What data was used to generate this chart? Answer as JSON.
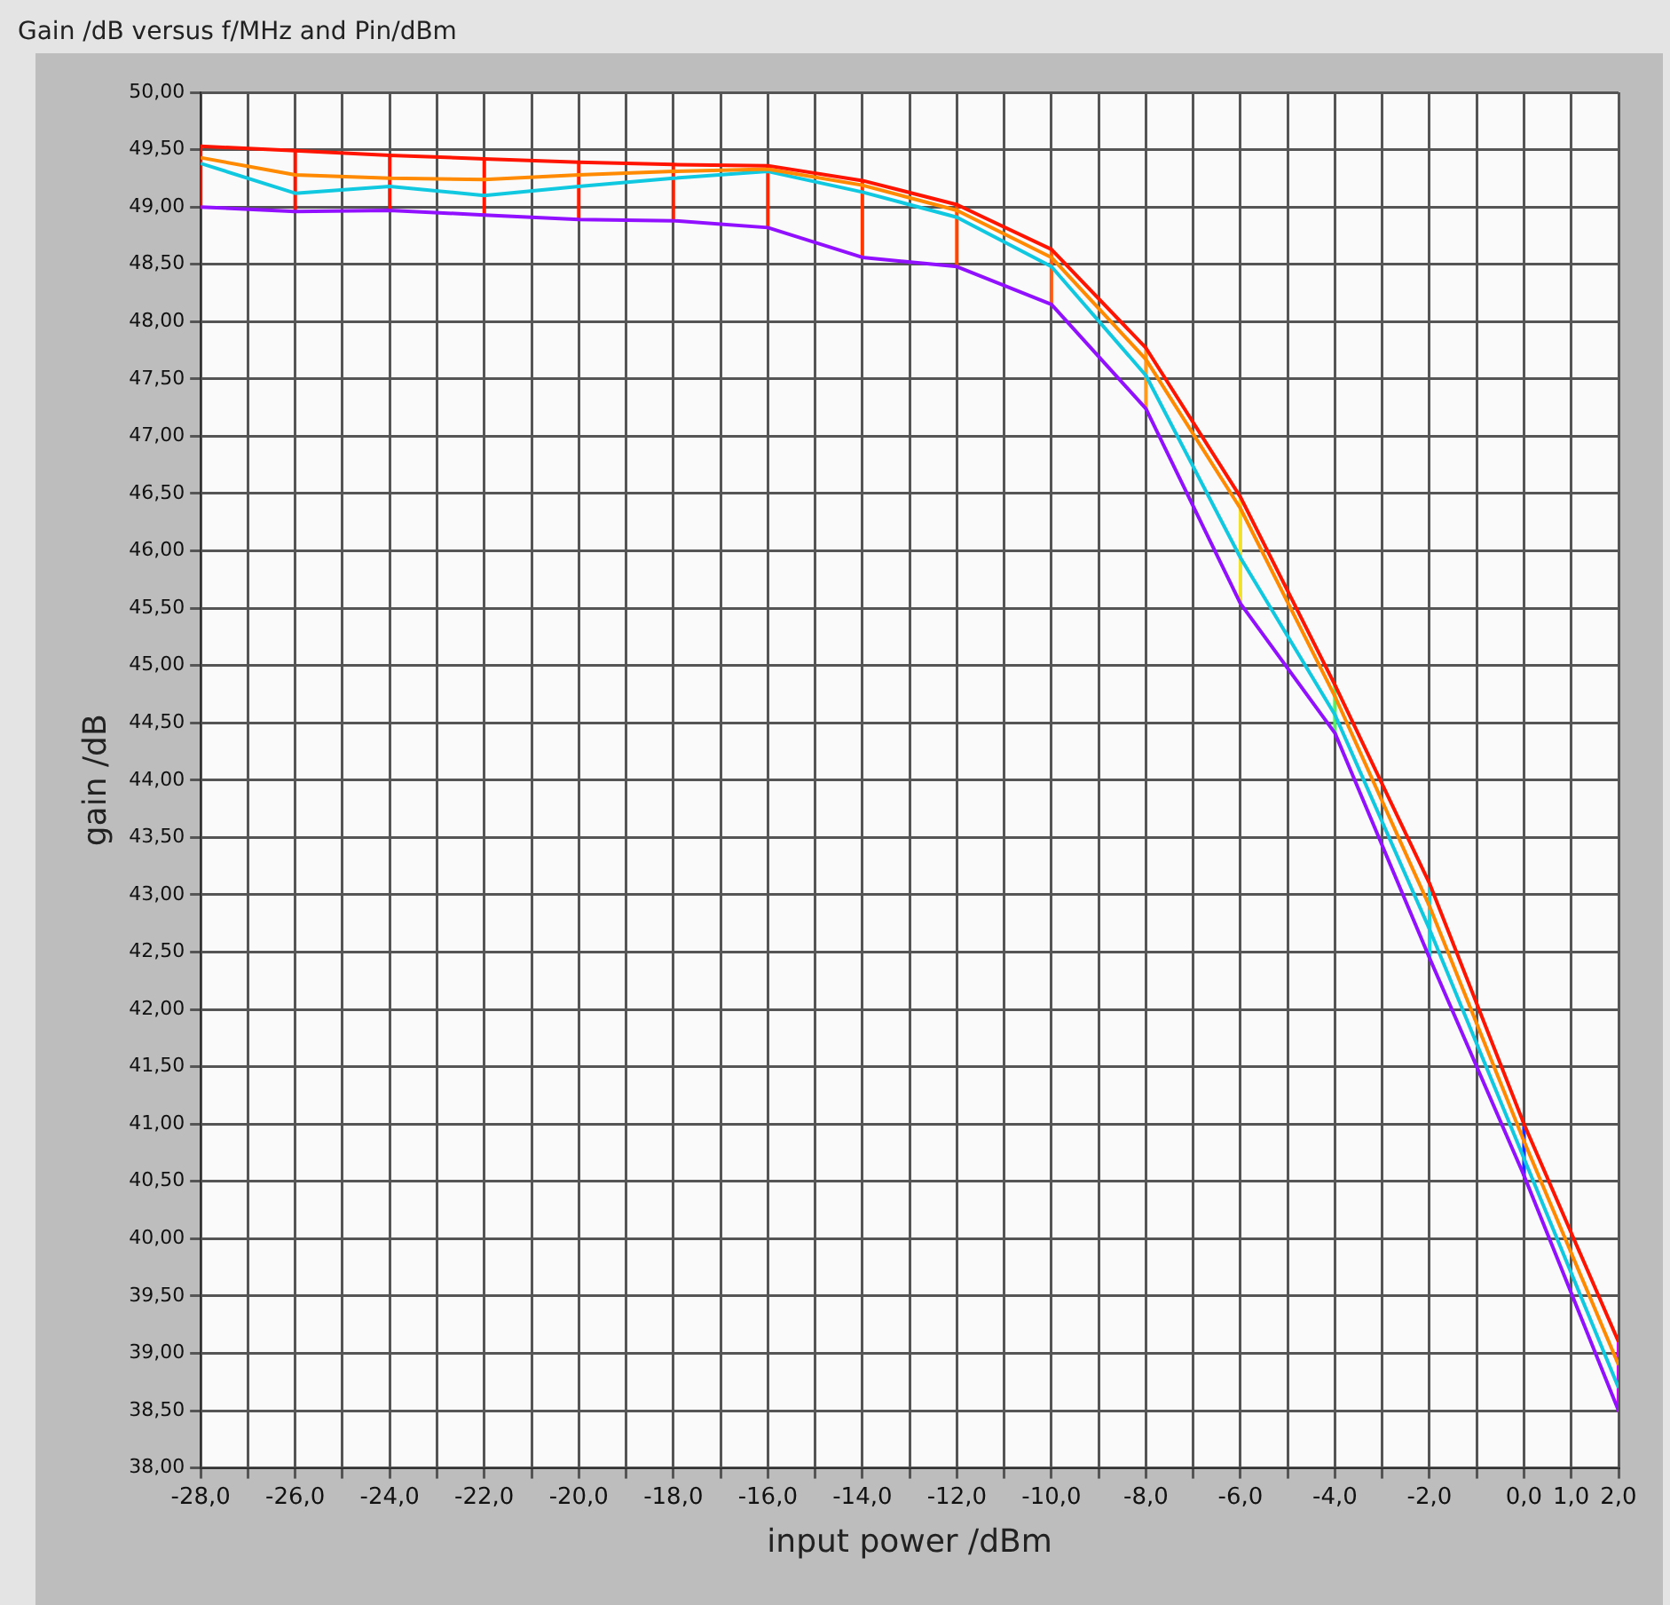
{
  "chart_data": {
    "type": "line",
    "title": "Gain /dB versus f/MHz and Pin/dBm",
    "xlabel": "input power /dBm",
    "ylabel": "gain /dB",
    "x": [
      -28,
      -26,
      -24,
      -22,
      -20,
      -18,
      -16,
      -14,
      -12,
      -10,
      -8,
      -6,
      -4,
      -2,
      0,
      2
    ],
    "series": [
      {
        "color": "#ff1400",
        "values": [
          49.53,
          49.49,
          49.45,
          49.42,
          49.39,
          49.37,
          49.36,
          49.23,
          49.02,
          48.63,
          47.77,
          46.47,
          44.83,
          43.1,
          41.0,
          39.1
        ]
      },
      {
        "color": "#ff8a00",
        "values": [
          49.43,
          49.28,
          49.25,
          49.24,
          49.28,
          49.31,
          49.33,
          49.19,
          48.97,
          48.56,
          47.67,
          46.37,
          44.73,
          42.9,
          40.85,
          38.9
        ]
      },
      {
        "color": "#10c8e0",
        "values": [
          49.38,
          49.12,
          49.18,
          49.1,
          49.18,
          49.25,
          49.31,
          49.13,
          48.91,
          48.48,
          47.53,
          45.94,
          44.57,
          42.7,
          40.7,
          38.7
        ]
      },
      {
        "color": "#9010ff",
        "values": [
          49.0,
          48.96,
          48.97,
          48.93,
          48.89,
          48.88,
          48.82,
          48.56,
          48.48,
          48.15,
          47.24,
          45.54,
          44.41,
          42.45,
          40.55,
          38.5
        ]
      },
      {
        "color": "#ff1400",
        "x": [
          -28,
          -28,
          -28,
          -28
        ],
        "values": [
          49.53,
          49.43,
          49.38,
          49.0
        ]
      },
      {
        "color": "#ff1400",
        "x": [
          -26,
          -26,
          -26,
          -26
        ],
        "values": [
          49.49,
          49.28,
          49.12,
          48.96
        ]
      },
      {
        "color": "#ff1400",
        "x": [
          -24,
          -24,
          -24,
          -24
        ],
        "values": [
          49.45,
          49.25,
          49.18,
          48.97
        ]
      },
      {
        "color": "#ff1800",
        "x": [
          -22,
          -22,
          -22,
          -22
        ],
        "values": [
          49.42,
          49.24,
          49.1,
          48.93
        ]
      },
      {
        "color": "#ff1c00",
        "x": [
          -20,
          -20,
          -20,
          -20
        ],
        "values": [
          49.39,
          49.28,
          49.18,
          48.89
        ]
      },
      {
        "color": "#ff2000",
        "x": [
          -18,
          -18,
          -18,
          -18
        ],
        "values": [
          49.37,
          49.31,
          49.25,
          48.88
        ]
      },
      {
        "color": "#ff2800",
        "x": [
          -16,
          -16,
          -16,
          -16
        ],
        "values": [
          49.36,
          49.33,
          49.31,
          48.82
        ]
      },
      {
        "color": "#ff3800",
        "x": [
          -14,
          -14,
          -14,
          -14
        ],
        "values": [
          49.23,
          49.19,
          49.13,
          48.56
        ]
      },
      {
        "color": "#ff4400",
        "x": [
          -12,
          -12,
          -12,
          -12
        ],
        "values": [
          49.02,
          48.97,
          48.91,
          48.48
        ]
      },
      {
        "color": "#ff5a10",
        "x": [
          -10,
          -10,
          -10,
          -10
        ],
        "values": [
          48.63,
          48.56,
          48.48,
          48.15
        ]
      },
      {
        "color": "#ff9a20",
        "x": [
          -8,
          -8,
          -8,
          -8
        ],
        "values": [
          47.77,
          47.67,
          47.53,
          47.24
        ]
      },
      {
        "color": "#f0e030",
        "x": [
          -6,
          -6,
          -6,
          -6
        ],
        "values": [
          46.47,
          46.37,
          45.94,
          45.54
        ]
      },
      {
        "color": "#50f060",
        "x": [
          -4,
          -4,
          -4,
          -4
        ],
        "values": [
          44.83,
          44.73,
          44.57,
          44.41
        ]
      },
      {
        "color": "#10d8e0",
        "x": [
          -2,
          -2,
          -2,
          -2
        ],
        "values": [
          43.1,
          42.9,
          42.7,
          42.45
        ]
      },
      {
        "color": "#1030ff",
        "x": [
          0,
          0,
          0,
          0
        ],
        "values": [
          41.0,
          40.85,
          40.7,
          40.55
        ]
      },
      {
        "color": "#d000ff",
        "x": [
          2,
          2,
          2,
          2
        ],
        "values": [
          39.1,
          38.9,
          38.7,
          38.5
        ]
      }
    ],
    "xlim": [
      -28,
      2
    ],
    "xticks": [
      {
        "value": -28,
        "label": "-28,0"
      },
      {
        "value": -27,
        "label": null
      },
      {
        "value": -26,
        "label": "-26,0"
      },
      {
        "value": -25,
        "label": null
      },
      {
        "value": -24,
        "label": "-24,0"
      },
      {
        "value": -23,
        "label": null
      },
      {
        "value": -22,
        "label": "-22,0"
      },
      {
        "value": -21,
        "label": null
      },
      {
        "value": -20,
        "label": "-20,0"
      },
      {
        "value": -19,
        "label": null
      },
      {
        "value": -18,
        "label": "-18,0"
      },
      {
        "value": -17,
        "label": null
      },
      {
        "value": -16,
        "label": "-16,0"
      },
      {
        "value": -15,
        "label": null
      },
      {
        "value": -14,
        "label": "-14,0"
      },
      {
        "value": -13,
        "label": null
      },
      {
        "value": -12,
        "label": "-12,0"
      },
      {
        "value": -11,
        "label": null
      },
      {
        "value": -10,
        "label": "-10,0"
      },
      {
        "value": -9,
        "label": null
      },
      {
        "value": -8,
        "label": "-8,0"
      },
      {
        "value": -7,
        "label": null
      },
      {
        "value": -6,
        "label": "-6,0"
      },
      {
        "value": -5,
        "label": null
      },
      {
        "value": -4,
        "label": "-4,0"
      },
      {
        "value": -3,
        "label": null
      },
      {
        "value": -2,
        "label": "-2,0"
      },
      {
        "value": -1,
        "label": null
      },
      {
        "value": 0,
        "label": "0,0"
      },
      {
        "value": 1,
        "label": "1,0"
      },
      {
        "value": 2,
        "label": "2,0"
      }
    ],
    "ylim": [
      38,
      50
    ],
    "yticks": [
      {
        "value": 38,
        "label": "38,00"
      },
      {
        "value": 38.5,
        "label": "38,50"
      },
      {
        "value": 39,
        "label": "39,00"
      },
      {
        "value": 39.5,
        "label": "39,50"
      },
      {
        "value": 40,
        "label": "40,00"
      },
      {
        "value": 40.5,
        "label": "40,50"
      },
      {
        "value": 41,
        "label": "41,00"
      },
      {
        "value": 41.5,
        "label": "41,50"
      },
      {
        "value": 42,
        "label": "42,00"
      },
      {
        "value": 42.5,
        "label": "42,50"
      },
      {
        "value": 43,
        "label": "43,00"
      },
      {
        "value": 43.5,
        "label": "43,50"
      },
      {
        "value": 44,
        "label": "44,00"
      },
      {
        "value": 44.5,
        "label": "44,50"
      },
      {
        "value": 45,
        "label": "45,00"
      },
      {
        "value": 45.5,
        "label": "45,50"
      },
      {
        "value": 46,
        "label": "46,00"
      },
      {
        "value": 46.5,
        "label": "46,50"
      },
      {
        "value": 47,
        "label": "47,00"
      },
      {
        "value": 47.5,
        "label": "47,50"
      },
      {
        "value": 48,
        "label": "48,00"
      },
      {
        "value": 48.5,
        "label": "48,50"
      },
      {
        "value": 49,
        "label": "49,00"
      },
      {
        "value": 49.5,
        "label": "49,50"
      },
      {
        "value": 50,
        "label": "50,00"
      }
    ],
    "grid": true,
    "marker": "none",
    "line_style": "solid"
  }
}
